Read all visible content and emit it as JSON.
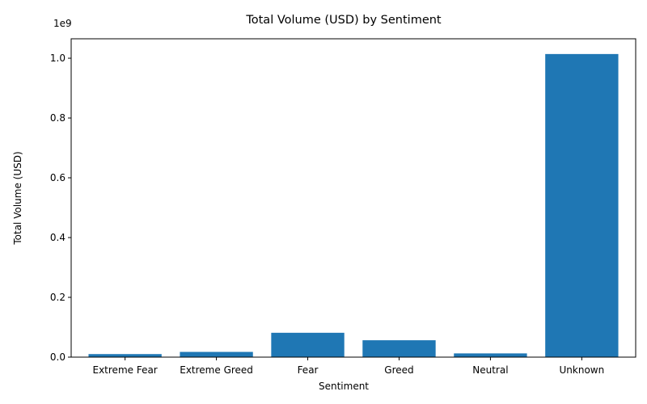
{
  "chart_data": {
    "type": "bar",
    "title": "Total Volume (USD) by Sentiment",
    "xlabel": "Sentiment",
    "ylabel": "Total Volume (USD)",
    "y_offset_text": "1e9",
    "categories": [
      "Extreme Fear",
      "Extreme Greed",
      "Fear",
      "Greed",
      "Neutral",
      "Unknown"
    ],
    "values": [
      0.0102,
      0.0175,
      0.0815,
      0.0565,
      0.0125,
      1.014
    ],
    "value_unit_multiplier": 1000000000,
    "ylim": [
      0,
      1.065
    ],
    "yticks": [
      0.0,
      0.2,
      0.4,
      0.6,
      0.8,
      1.0
    ],
    "ytick_labels": [
      "0.0",
      "0.2",
      "0.4",
      "0.6",
      "0.8",
      "1.0"
    ],
    "bar_color": "#1f77b4",
    "grid": false,
    "legend": "none"
  }
}
